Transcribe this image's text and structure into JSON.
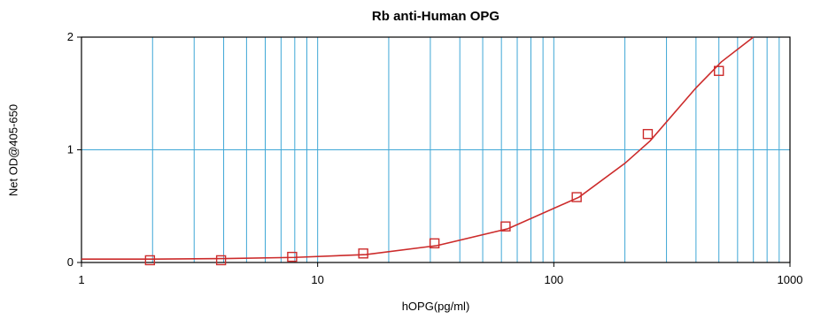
{
  "chart_data": {
    "type": "scatter",
    "title": "Rb anti-Human OPG",
    "xlabel": "hOPG(pg/ml)",
    "ylabel": "Net OD@405-650",
    "xscale": "log",
    "xlim": [
      1,
      1000
    ],
    "ylim": [
      0,
      2
    ],
    "xticks": [
      1,
      10,
      100,
      1000
    ],
    "xtick_labels": [
      "1",
      "10",
      "100",
      "1000"
    ],
    "yticks": [
      0,
      1,
      2
    ],
    "ytick_labels": [
      "0",
      "1",
      "2"
    ],
    "grid": true,
    "series": [
      {
        "type": "scatter",
        "marker": "square",
        "x": [
          1.95,
          3.9,
          7.8,
          15.6,
          31.25,
          62.5,
          125,
          250,
          500
        ],
        "y": [
          0.02,
          0.02,
          0.05,
          0.08,
          0.17,
          0.32,
          0.58,
          1.14,
          1.7
        ]
      },
      {
        "type": "line",
        "x": [
          1,
          2,
          4,
          8,
          16,
          32,
          64,
          128,
          200,
          256,
          400,
          512,
          700
        ],
        "y": [
          0.03,
          0.03,
          0.035,
          0.045,
          0.07,
          0.15,
          0.3,
          0.58,
          0.88,
          1.08,
          1.55,
          1.78,
          2.0
        ]
      }
    ],
    "colors": {
      "grid": "#3fa7d6",
      "series": "#cc2b2b"
    }
  }
}
